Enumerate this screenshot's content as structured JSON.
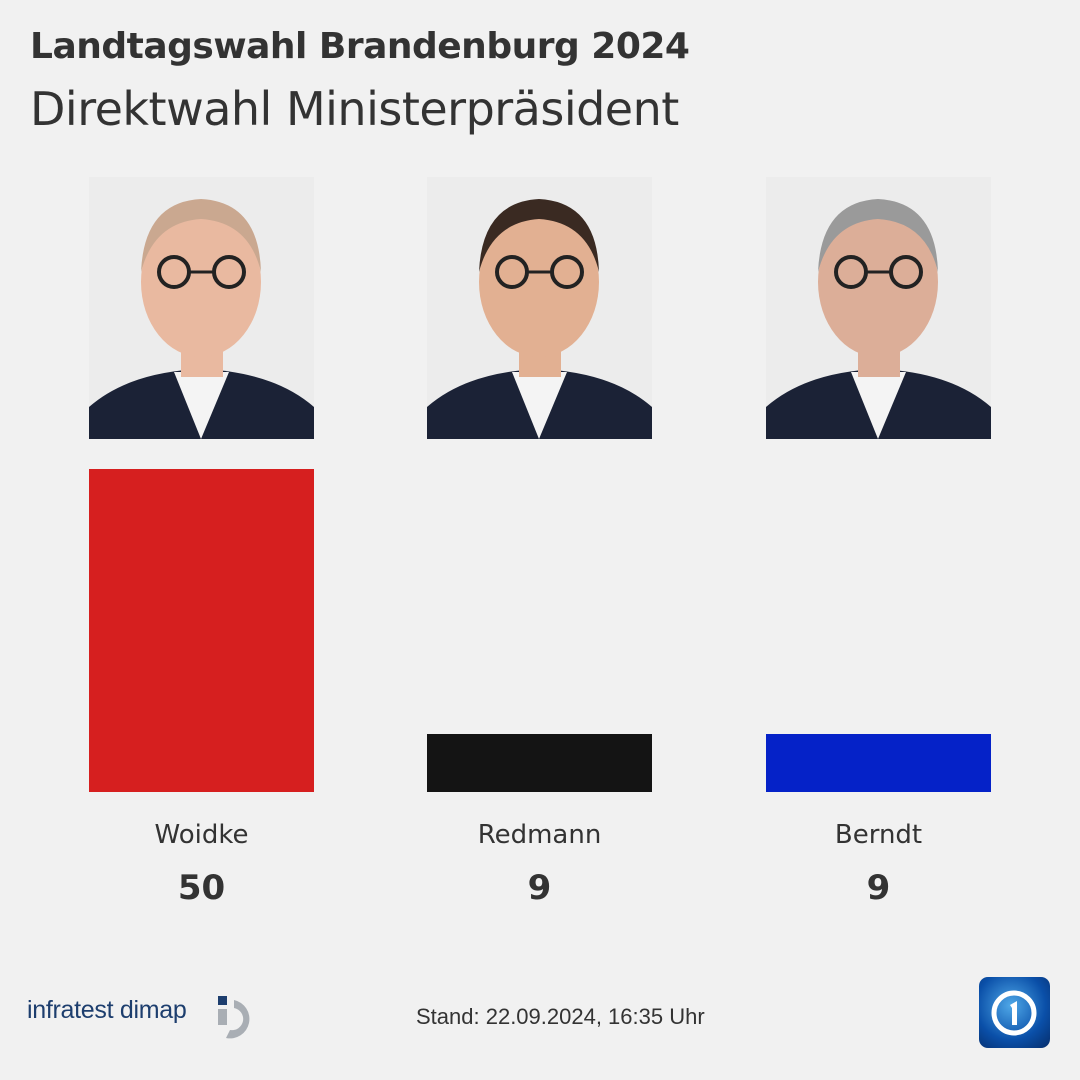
{
  "header": {
    "title": "Landtagswahl Brandenburg 2024",
    "subtitle": "Direktwahl Ministerpräsident"
  },
  "chart_data": {
    "type": "bar",
    "title": "Direktwahl Ministerpräsident",
    "categories": [
      "Woidke",
      "Redmann",
      "Berndt"
    ],
    "values": [
      50,
      9,
      9
    ],
    "colors": [
      "#d61f1f",
      "#141414",
      "#0522c8"
    ],
    "ylim": [
      0,
      50
    ],
    "grid": false
  },
  "footer": {
    "source_logo": "infratest dimap",
    "stand": "Stand:  22.09.2024, 16:35 Uhr",
    "broadcaster_logo": "tagesschau"
  }
}
